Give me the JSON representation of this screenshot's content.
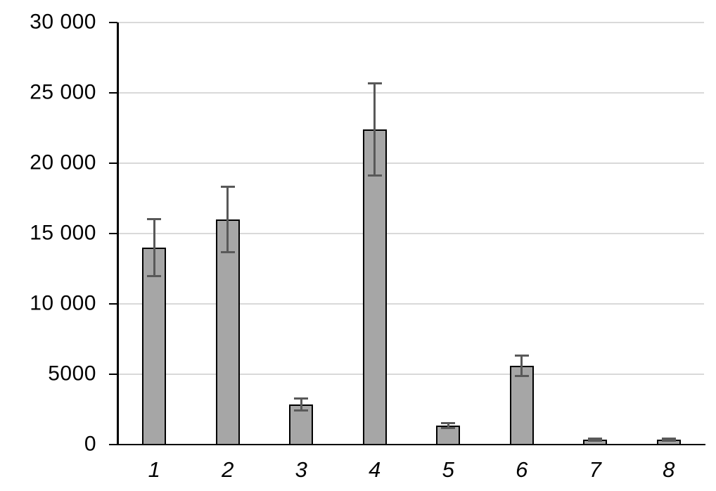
{
  "chart_data": {
    "type": "bar",
    "title": "",
    "xlabel": "",
    "ylabel": "",
    "categories": [
      "1",
      "2",
      "3",
      "4",
      "5",
      "6",
      "7",
      "8"
    ],
    "values": [
      14000,
      16000,
      2850,
      22400,
      1350,
      5600,
      350,
      350
    ],
    "errors": [
      2100,
      2400,
      500,
      3350,
      270,
      820,
      160,
      160
    ],
    "error_bar_style": "symmetric-capped",
    "ylim": [
      0,
      30000
    ],
    "ytick_values": [
      0,
      5000,
      10000,
      15000,
      20000,
      25000,
      30000
    ],
    "ytick_labels": [
      "0",
      "5000",
      "10 000",
      "15 000",
      "20 000",
      "25 000",
      "30 000"
    ],
    "grid": true,
    "legend": false,
    "colors": {
      "bar_fill": "#a6a6a6",
      "bar_border": "#000000",
      "error_bar": "#595959",
      "gridline": "#d9d9d9",
      "axis": "#000000",
      "label_text": "#000000",
      "background": "#ffffff"
    }
  }
}
